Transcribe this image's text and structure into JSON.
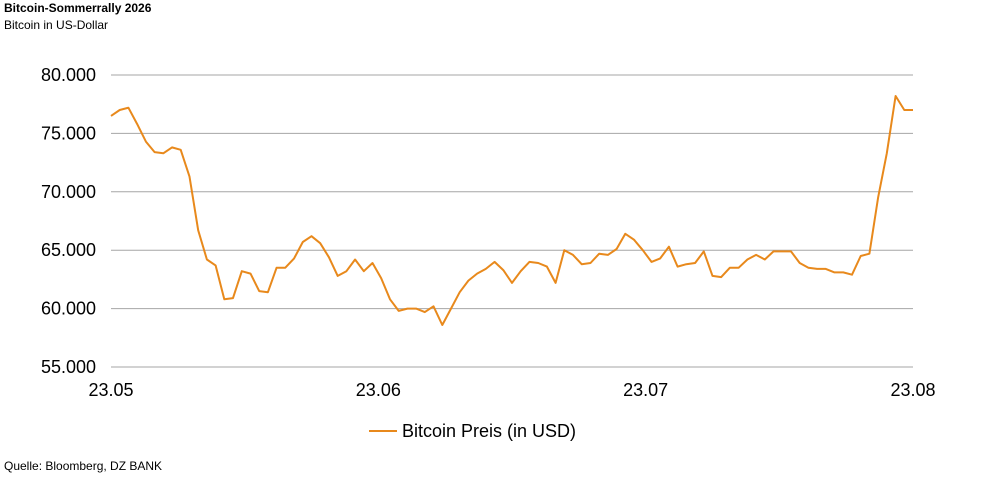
{
  "header": {
    "title": "Bitcoin-Sommerrally 2026",
    "subtitle": "Bitcoin in US-Dollar"
  },
  "footer": {
    "source": "Quelle: Bloomberg, DZ BANK"
  },
  "colors": {
    "series": "#E8891C",
    "grid": "#A6A6A6",
    "text": "#000000"
  },
  "chart_data": {
    "type": "line",
    "title": "Bitcoin-Sommerrally 2026",
    "subtitle": "Bitcoin in US-Dollar",
    "xlabel": "",
    "ylabel": "",
    "x_ticks": [
      "23.05",
      "23.06",
      "23.07",
      "23.08"
    ],
    "y_ticks": [
      "55.000",
      "60.000",
      "65.000",
      "70.000",
      "75.000",
      "80.000"
    ],
    "y_tick_values": [
      55000,
      60000,
      65000,
      70000,
      75000,
      80000
    ],
    "ylim": [
      55000,
      80000
    ],
    "grid": true,
    "legend": "bottom-center",
    "series": [
      {
        "name": "Bitcoin Preis (in USD)",
        "values": [
          76500,
          77000,
          77200,
          75800,
          74300,
          73400,
          73300,
          73800,
          73600,
          71300,
          66700,
          64200,
          63700,
          60800,
          60900,
          63200,
          63000,
          61500,
          61400,
          63500,
          63500,
          64300,
          65700,
          66200,
          65600,
          64400,
          62800,
          63200,
          64200,
          63200,
          63900,
          62600,
          60800,
          59800,
          60000,
          60000,
          59700,
          60200,
          58600,
          60000,
          61400,
          62400,
          63000,
          63400,
          64000,
          63300,
          62200,
          63200,
          64000,
          63900,
          63600,
          62200,
          65000,
          64600,
          63800,
          63900,
          64700,
          64600,
          65100,
          66400,
          65900,
          65000,
          64000,
          64300,
          65300,
          63600,
          63800,
          63900,
          64900,
          62800,
          62700,
          63500,
          63500,
          64200,
          64600,
          64200,
          64900,
          64900,
          64900,
          63900,
          63500,
          63400,
          63400,
          63100,
          63100,
          62900,
          64500,
          64700,
          69500,
          73300,
          78200,
          77000,
          77000
        ]
      }
    ]
  }
}
